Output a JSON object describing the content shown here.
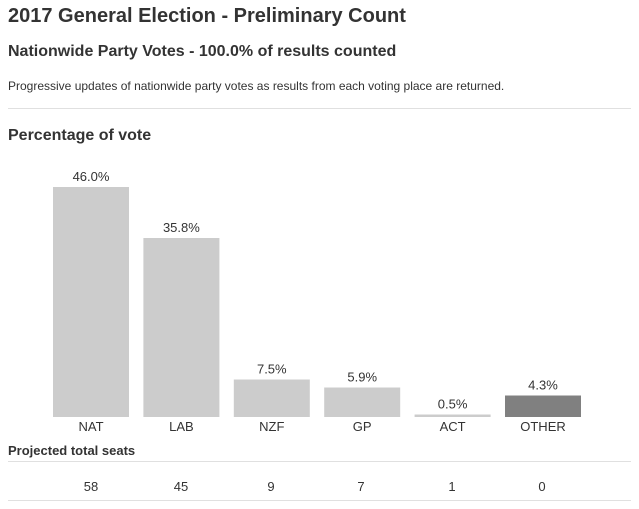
{
  "page": {
    "title": "2017 General Election - Preliminary Count",
    "subtitle": "Nationwide Party Votes - 100.0% of results counted",
    "description": "Progressive updates of nationwide party votes as results from each voting place are returned.",
    "chart_heading": "Percentage of vote",
    "seats_heading": "Projected total seats"
  },
  "chart_data": {
    "type": "bar",
    "title": "Percentage of vote",
    "categories": [
      "NAT",
      "LAB",
      "NZF",
      "GP",
      "ACT",
      "OTHER"
    ],
    "values": [
      46.0,
      35.8,
      7.5,
      5.9,
      0.5,
      4.3
    ],
    "value_labels": [
      "46.0%",
      "35.8%",
      "7.5%",
      "5.9%",
      "0.5%",
      "4.3%"
    ],
    "colors": [
      "#cccccc",
      "#cccccc",
      "#cccccc",
      "#cccccc",
      "#cccccc",
      "#808080"
    ],
    "xlabel": "",
    "ylabel": "",
    "ylim": [
      0,
      46.0
    ],
    "grid": false
  },
  "seats": {
    "values": [
      "58",
      "45",
      "9",
      "7",
      "1",
      "0"
    ]
  }
}
